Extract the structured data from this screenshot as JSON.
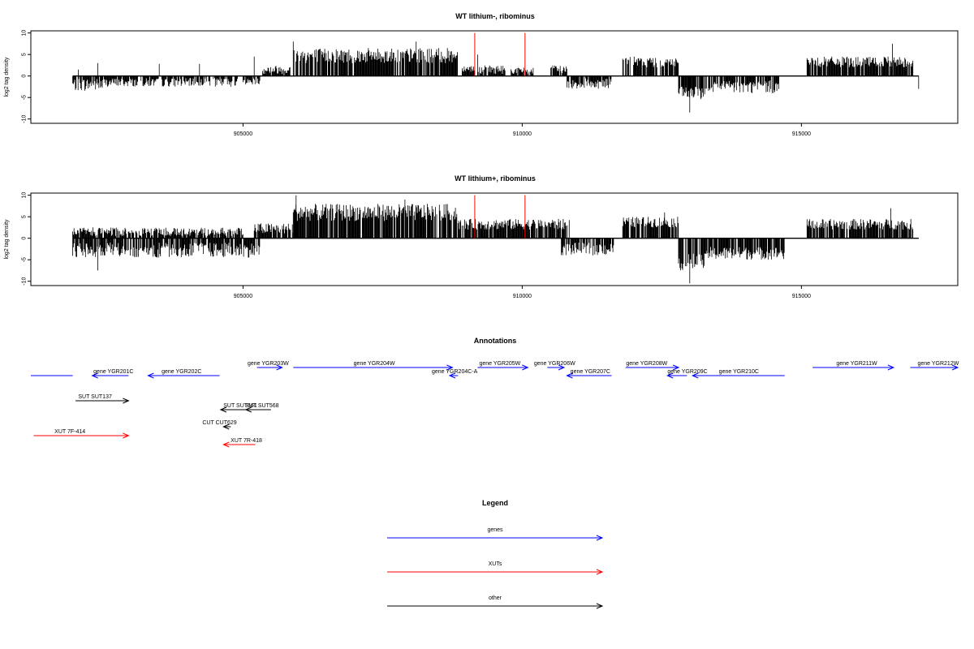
{
  "chart_data": [
    {
      "type": "bar",
      "title": "WT lithium-, ribominus",
      "ylabel": "log2 tag density",
      "xlim": [
        901200,
        917800
      ],
      "ylim": [
        -11,
        10.5
      ],
      "yticks": [
        -10,
        -5,
        0,
        5,
        10
      ],
      "yticklabels": [
        "-10",
        "-5",
        "0",
        "5",
        "10"
      ],
      "xticks": [
        905000,
        910000,
        915000
      ],
      "xticklabels": [
        "905000",
        "910000",
        "915000"
      ],
      "baseline": {
        "from": 901950,
        "to": 917100
      },
      "markers": {
        "color": "#ff0000",
        "x": [
          909150,
          910050
        ],
        "top": 10
      },
      "regions": [
        {
          "from": 901950,
          "to": 902500,
          "min": -3.5,
          "max": -0.5
        },
        {
          "from": 902500,
          "to": 904900,
          "min": -2.5,
          "max": -0.5
        },
        {
          "from": 905000,
          "to": 905300,
          "min": -2,
          "max": -0.5
        },
        {
          "from": 905350,
          "to": 905850,
          "min": 0.5,
          "max": 2.5
        },
        {
          "from": 905900,
          "to": 908850,
          "min": 3,
          "max": 6.5
        },
        {
          "from": 908900,
          "to": 909150,
          "min": 1,
          "max": 2.5
        },
        {
          "from": 909200,
          "to": 909700,
          "min": 0.5,
          "max": 2.5
        },
        {
          "from": 909800,
          "to": 910200,
          "min": 0.5,
          "max": 2
        },
        {
          "from": 910500,
          "to": 910800,
          "min": 0.5,
          "max": 2.5
        },
        {
          "from": 910800,
          "to": 911600,
          "min": -3,
          "max": -0.5
        },
        {
          "from": 911800,
          "to": 912800,
          "min": 2,
          "max": 4.5
        },
        {
          "from": 912800,
          "to": 913300,
          "min": -5.5,
          "max": -2.5
        },
        {
          "from": 913300,
          "to": 914600,
          "min": -4,
          "max": -1
        },
        {
          "from": 915100,
          "to": 917000,
          "min": 2,
          "max": 4.5
        }
      ],
      "spikes": [
        {
          "x": 902050,
          "y": 1.5
        },
        {
          "x": 902400,
          "y": 3
        },
        {
          "x": 903500,
          "y": 2.8
        },
        {
          "x": 904220,
          "y": 2.8
        },
        {
          "x": 905200,
          "y": 4.5
        },
        {
          "x": 905900,
          "y": 8
        },
        {
          "x": 908100,
          "y": 8
        },
        {
          "x": 909200,
          "y": 5
        },
        {
          "x": 913000,
          "y": -8.5
        },
        {
          "x": 916630,
          "y": 7.5
        },
        {
          "x": 917100,
          "y": -3
        }
      ]
    },
    {
      "type": "bar",
      "title": "WT lithium+, ribominus",
      "ylabel": "log2 tag density",
      "xlim": [
        901200,
        917800
      ],
      "ylim": [
        -11,
        10.5
      ],
      "yticks": [
        -10,
        -5,
        0,
        5,
        10
      ],
      "yticklabels": [
        "-10",
        "-5",
        "0",
        "5",
        "10"
      ],
      "xticks": [
        905000,
        910000,
        915000
      ],
      "xticklabels": [
        "905000",
        "910000",
        "915000"
      ],
      "baseline": {
        "from": 901950,
        "to": 917100
      },
      "markers": {
        "color": "#ff0000",
        "x": [
          909150,
          910050
        ],
        "top": 10
      },
      "regions": [
        {
          "from": 901950,
          "to": 905000,
          "min": 0.5,
          "max": 2.5
        },
        {
          "from": 901950,
          "to": 905300,
          "min": -4.5,
          "max": -1
        },
        {
          "from": 905200,
          "to": 905900,
          "min": 1,
          "max": 3.5
        },
        {
          "from": 905900,
          "to": 908850,
          "min": 4,
          "max": 8
        },
        {
          "from": 908850,
          "to": 910850,
          "min": 2,
          "max": 4.5
        },
        {
          "from": 910700,
          "to": 911650,
          "min": -4,
          "max": -1
        },
        {
          "from": 911800,
          "to": 912800,
          "min": 2.5,
          "max": 5
        },
        {
          "from": 912800,
          "to": 913300,
          "min": -7.5,
          "max": -3.5
        },
        {
          "from": 913300,
          "to": 914700,
          "min": -5,
          "max": -2
        },
        {
          "from": 915100,
          "to": 917000,
          "min": 2,
          "max": 4.5
        }
      ],
      "spikes": [
        {
          "x": 905950,
          "y": 10
        },
        {
          "x": 907900,
          "y": 9
        },
        {
          "x": 902400,
          "y": -7.5
        },
        {
          "x": 913000,
          "y": -10.5
        },
        {
          "x": 916600,
          "y": 7
        },
        {
          "x": 912550,
          "y": 6
        }
      ]
    }
  ],
  "annotations": {
    "title": "Annotations",
    "gene_color": "#0000ff",
    "xut_color": "#ff0000",
    "other_color": "#000000",
    "items": [
      {
        "label": "",
        "kind": "gene",
        "from": 901200,
        "to": 901950,
        "dir": "none",
        "row": 1,
        "label_at": 901575
      },
      {
        "label": "gene YGR201C",
        "kind": "gene",
        "from": 902300,
        "to": 902950,
        "dir": "left",
        "row": 1,
        "label_at": 902680
      },
      {
        "label": "gene YGR202C",
        "kind": "gene",
        "from": 903300,
        "to": 904580,
        "dir": "left",
        "row": 1,
        "label_at": 903900
      },
      {
        "label": "gene YGR203W",
        "kind": "gene",
        "from": 905250,
        "to": 905700,
        "dir": "right",
        "row": 0,
        "label_at": 905450
      },
      {
        "label": "gene YGR204W",
        "kind": "gene",
        "from": 905900,
        "to": 908750,
        "dir": "right",
        "row": 0,
        "label_at": 907350
      },
      {
        "label": "gene YGR205W",
        "kind": "gene",
        "from": 909200,
        "to": 910100,
        "dir": "right",
        "row": 0,
        "label_at": 909600
      },
      {
        "label": "gene YGR204C-A",
        "kind": "gene",
        "from": 908700,
        "to": 908850,
        "dir": "left",
        "row": 1,
        "label_at": 908790
      },
      {
        "label": "gene YGR206W",
        "kind": "gene",
        "from": 910450,
        "to": 910750,
        "dir": "right",
        "row": 0,
        "label_at": 910580
      },
      {
        "label": "gene YGR207C",
        "kind": "gene",
        "from": 910800,
        "to": 911600,
        "dir": "left",
        "row": 1,
        "label_at": 911220
      },
      {
        "label": "gene YGR208W",
        "kind": "gene",
        "from": 911850,
        "to": 912800,
        "dir": "right",
        "row": 0,
        "label_at": 912230
      },
      {
        "label": "gene YGR209C",
        "kind": "gene",
        "from": 912600,
        "to": 912950,
        "dir": "left",
        "row": 1,
        "label_at": 912960
      },
      {
        "label": "gene YGR210C",
        "kind": "gene",
        "from": 913050,
        "to": 914700,
        "dir": "left",
        "row": 1,
        "label_at": 913880
      },
      {
        "label": "gene YGR211W",
        "kind": "gene",
        "from": 915200,
        "to": 916650,
        "dir": "right",
        "row": 0,
        "label_at": 915990
      },
      {
        "label": "gene YGR212W",
        "kind": "gene",
        "from": 916950,
        "to": 917800,
        "dir": "right",
        "row": 0,
        "label_at": 917450
      },
      {
        "label": "SUT SUT137",
        "kind": "other",
        "from": 902000,
        "to": 902950,
        "dir": "right",
        "row": 2,
        "label_at": 902350
      },
      {
        "label": "SUT SUT561",
        "kind": "other",
        "from": 904600,
        "to": 905050,
        "dir": "left",
        "row": 3,
        "label_at": 904950
      },
      {
        "label": "SUT SUT568",
        "kind": "other",
        "from": 905050,
        "to": 905500,
        "dir": "left",
        "row": 3,
        "label_at": 905340
      },
      {
        "label": "CUT CUT629",
        "kind": "other",
        "from": 904650,
        "to": 904780,
        "dir": "left",
        "row": 4,
        "label_at": 904580
      },
      {
        "label": "XUT 7F-414",
        "kind": "xut",
        "from": 901250,
        "to": 902950,
        "dir": "right",
        "row": 5,
        "label_at": 901900
      },
      {
        "label": "XUT 7R-418",
        "kind": "xut",
        "from": 904650,
        "to": 905220,
        "dir": "left",
        "row": 6,
        "label_at": 905060
      }
    ]
  },
  "legend": {
    "title": "Legend",
    "items": [
      {
        "label": "genes",
        "color": "#0000ff"
      },
      {
        "label": "XUTs",
        "color": "#ff0000"
      },
      {
        "label": "other",
        "color": "#000000"
      }
    ]
  }
}
